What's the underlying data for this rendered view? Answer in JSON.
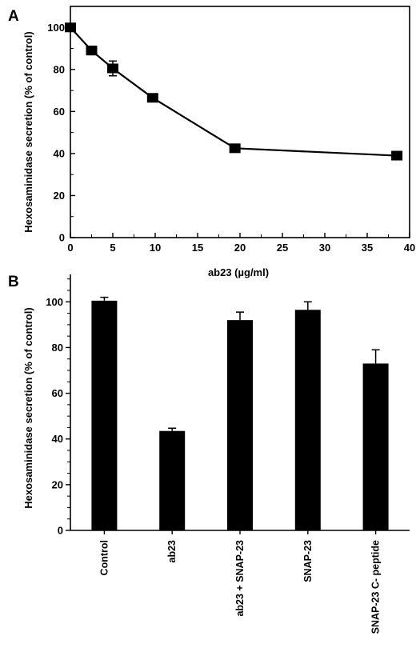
{
  "chart_data": [
    {
      "panel": "A",
      "type": "line",
      "xlabel": "ab23 (µg/ml)",
      "ylabel": "Hexosaminidase secretion (% of control)",
      "xlim": [
        0,
        40
      ],
      "ylim": [
        0,
        110
      ],
      "x_ticks": [
        "0",
        "5",
        "10",
        "15",
        "20",
        "25",
        "30",
        "35",
        "40"
      ],
      "y_ticks": [
        "0",
        "20",
        "40",
        "60",
        "80",
        "100"
      ],
      "x": [
        0,
        2.5,
        5,
        9.7,
        19.4,
        38.5
      ],
      "y": [
        100,
        89,
        80.5,
        66.5,
        42.5,
        39
      ],
      "err": [
        1.5,
        2,
        3.5,
        1,
        1,
        1
      ],
      "grid": false
    },
    {
      "panel": "B",
      "type": "bar",
      "ylabel": "Hexosaminidase secretion (% of control)",
      "ylim": [
        0,
        112
      ],
      "y_ticks": [
        "0",
        "20",
        "40",
        "60",
        "80",
        "100"
      ],
      "categories": [
        "Control",
        "ab23",
        "ab23 + SNAP-23",
        "SNAP-23",
        "SNAP-23 C- peptide"
      ],
      "values": [
        100.5,
        43.5,
        92,
        96.5,
        73
      ],
      "err": [
        1.5,
        1.2,
        3.5,
        3.5,
        6
      ],
      "grid": false
    }
  ]
}
